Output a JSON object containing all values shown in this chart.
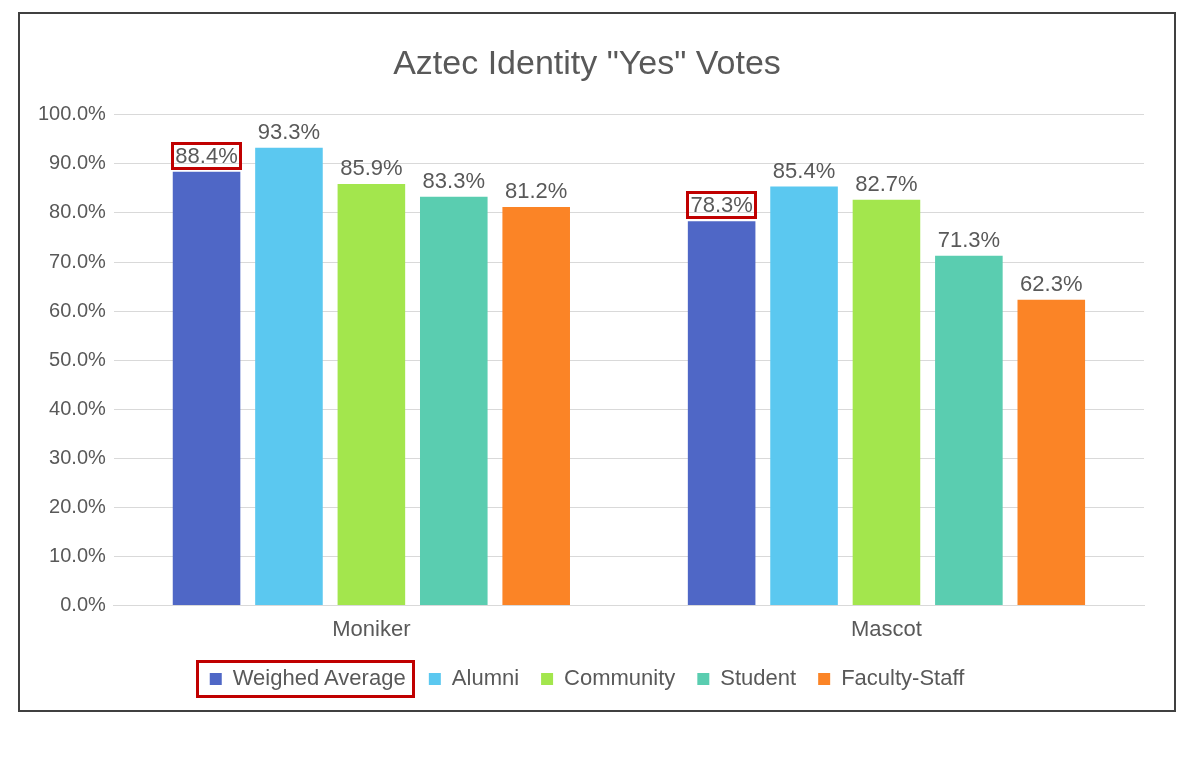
{
  "chart_data": {
    "type": "bar",
    "title": "Aztec Identity \"Yes\" Votes",
    "categories": [
      "Moniker",
      "Mascot"
    ],
    "series": [
      {
        "name": "Weighed Average",
        "color": "#4f67c6",
        "values": [
          88.4,
          78.3
        ],
        "value_labels": [
          "88.4%",
          "78.3%"
        ]
      },
      {
        "name": "Alumni",
        "color": "#5bc8f0",
        "values": [
          93.3,
          85.4
        ],
        "value_labels": [
          "93.3%",
          "85.4%"
        ]
      },
      {
        "name": "Community",
        "color": "#a3e64d",
        "values": [
          85.9,
          82.7
        ],
        "value_labels": [
          "85.9%",
          "82.7%"
        ]
      },
      {
        "name": "Student",
        "color": "#5acdb0",
        "values": [
          83.3,
          71.3
        ],
        "value_labels": [
          "83.3%",
          "71.3%"
        ]
      },
      {
        "name": "Faculty-Staff",
        "color": "#fb8426",
        "values": [
          81.2,
          62.3
        ],
        "value_labels": [
          "81.2%",
          "62.3%"
        ]
      }
    ],
    "ylim": [
      0,
      100
    ],
    "yticks": [
      {
        "value": 0,
        "label": "0.0%"
      },
      {
        "value": 10,
        "label": "10.0%"
      },
      {
        "value": 20,
        "label": "20.0%"
      },
      {
        "value": 30,
        "label": "30.0%"
      },
      {
        "value": 40,
        "label": "40.0%"
      },
      {
        "value": 50,
        "label": "50.0%"
      },
      {
        "value": 60,
        "label": "60.0%"
      },
      {
        "value": 70,
        "label": "70.0%"
      },
      {
        "value": 80,
        "label": "80.0%"
      },
      {
        "value": 90,
        "label": "90.0%"
      },
      {
        "value": 100,
        "label": "100.0%"
      }
    ],
    "grid": "y",
    "legend": "bottom"
  }
}
